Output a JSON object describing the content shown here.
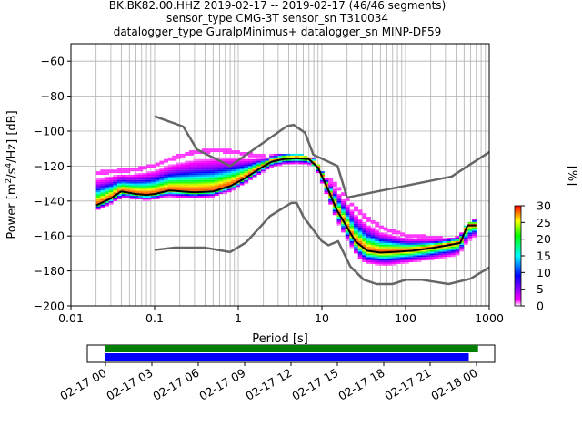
{
  "title": [
    "BK.BK82.00.HHZ   2019-02-17 -- 2019-02-17  (46/46 segments)",
    "sensor_type CMG-3T sensor_sn T310034",
    "datalogger_type GuralpMinimus+ datalogger_sn MINP-DF59"
  ],
  "chart_data": {
    "type": "heatmap",
    "xlabel": "Period [s]",
    "ylabel": "Power [m²/s⁴/Hz] [dB]",
    "xscale": "log",
    "xlim": [
      0.01,
      1000
    ],
    "ylim": [
      -200,
      -50
    ],
    "x_ticks": [
      "0.01",
      "0.1",
      "1",
      "10",
      "100",
      "1000"
    ],
    "y_ticks": [
      "-200",
      "-180",
      "-160",
      "-140",
      "-120",
      "-100",
      "-80",
      "-60"
    ],
    "grid": true,
    "colorbar": {
      "label": "[%]",
      "ticks": [
        "0",
        "5",
        "10",
        "15",
        "20",
        "25",
        "30"
      ],
      "range": [
        0,
        30
      ],
      "colors": [
        "#ffffff",
        "#ff00ff",
        "#0000ff",
        "#00ffff",
        "#00ff00",
        "#ffff00",
        "#ff0000"
      ]
    },
    "series": [
      {
        "name": "",
        "role": "nhnm",
        "color": "#666666",
        "points": [
          [
            0.1,
            -91.5
          ],
          [
            0.22,
            -97.4
          ],
          [
            0.32,
            -110.5
          ],
          [
            0.8,
            -120
          ],
          [
            3.8,
            -97.2
          ],
          [
            4.6,
            -96.4
          ],
          [
            6.3,
            -101
          ],
          [
            7.9,
            -113.5
          ],
          [
            15.4,
            -120
          ],
          [
            20,
            -138
          ],
          [
            354.8,
            -126
          ],
          [
            1000,
            -112
          ]
        ]
      },
      {
        "name": "",
        "role": "nlnm",
        "color": "#666666",
        "points": [
          [
            0.1,
            -168
          ],
          [
            0.17,
            -166.7
          ],
          [
            0.4,
            -166.7
          ],
          [
            0.8,
            -169.2
          ],
          [
            1.24,
            -163.7
          ],
          [
            2.4,
            -148.6
          ],
          [
            4.3,
            -141.1
          ],
          [
            5,
            -141.1
          ],
          [
            6,
            -149
          ],
          [
            10,
            -163
          ],
          [
            12,
            -165.3
          ],
          [
            15.6,
            -163
          ],
          [
            21.9,
            -177.5
          ],
          [
            31.6,
            -185
          ],
          [
            45,
            -187.5
          ],
          [
            70,
            -187.5
          ],
          [
            101,
            -185
          ],
          [
            154,
            -185
          ],
          [
            328,
            -187.5
          ],
          [
            600,
            -184.4
          ],
          [
            1000,
            -178
          ]
        ]
      },
      {
        "name": "",
        "role": "mean",
        "color": "#000000",
        "points": [
          [
            0.02,
            -142.5
          ],
          [
            0.03,
            -138.5
          ],
          [
            0.04,
            -134.5
          ],
          [
            0.06,
            -136
          ],
          [
            0.08,
            -136.5
          ],
          [
            0.1,
            -136
          ],
          [
            0.15,
            -134
          ],
          [
            0.3,
            -135
          ],
          [
            0.5,
            -134.5
          ],
          [
            0.8,
            -131.5
          ],
          [
            1.2,
            -127
          ],
          [
            1.8,
            -121.5
          ],
          [
            2.5,
            -117.5
          ],
          [
            3.5,
            -116
          ],
          [
            5,
            -115.5
          ],
          [
            7,
            -116
          ],
          [
            9,
            -121
          ],
          [
            12,
            -134
          ],
          [
            15,
            -145
          ],
          [
            20,
            -155
          ],
          [
            25,
            -163
          ],
          [
            35,
            -168.5
          ],
          [
            50,
            -169.5
          ],
          [
            80,
            -169
          ],
          [
            120,
            -168.5
          ],
          [
            200,
            -167
          ],
          [
            350,
            -165
          ],
          [
            450,
            -164
          ],
          [
            550,
            -154
          ],
          [
            700,
            -154
          ]
        ]
      },
      {
        "name": "",
        "role": "pdf-upper",
        "points": [
          [
            0.05,
            -120
          ],
          [
            0.1,
            -116
          ],
          [
            0.2,
            -110
          ],
          [
            0.3,
            -107
          ],
          [
            0.5,
            -106
          ],
          [
            0.8,
            -107
          ],
          [
            1.5,
            -112
          ],
          [
            2.5,
            -114
          ],
          [
            5,
            -114
          ],
          [
            8,
            -117
          ],
          [
            10,
            -124
          ],
          [
            15,
            -129
          ],
          [
            25,
            -140
          ],
          [
            50,
            -152
          ],
          [
            100,
            -158
          ],
          [
            200,
            -160
          ],
          [
            400,
            -160
          ],
          [
            700,
            -151
          ]
        ]
      },
      {
        "name": "",
        "role": "pdf-lower",
        "points": [
          [
            0.02,
            -146
          ],
          [
            0.05,
            -140
          ],
          [
            0.1,
            -140
          ],
          [
            0.3,
            -141
          ],
          [
            0.6,
            -139
          ],
          [
            1,
            -134
          ],
          [
            1.5,
            -128
          ],
          [
            2.5,
            -120
          ],
          [
            5,
            -118
          ],
          [
            8,
            -120
          ],
          [
            11,
            -138
          ],
          [
            15,
            -155
          ],
          [
            20,
            -167
          ],
          [
            30,
            -180
          ],
          [
            60,
            -182
          ],
          [
            100,
            -180
          ],
          [
            200,
            -178
          ],
          [
            400,
            -176
          ],
          [
            700,
            -164
          ]
        ]
      }
    ]
  },
  "timeline": {
    "ticks": [
      "02-17 00",
      "02-17 03",
      "02-17 06",
      "02-17 09",
      "02-17 12",
      "02-17 15",
      "02-17 18",
      "02-17 21",
      "02-18 00"
    ],
    "data_bar": {
      "color": "#008000",
      "start_hour": 0,
      "end_hour": 24.1
    },
    "segments_bar": {
      "color": "#0000ff",
      "start_hour": 0,
      "end_hour": 23.5
    }
  }
}
